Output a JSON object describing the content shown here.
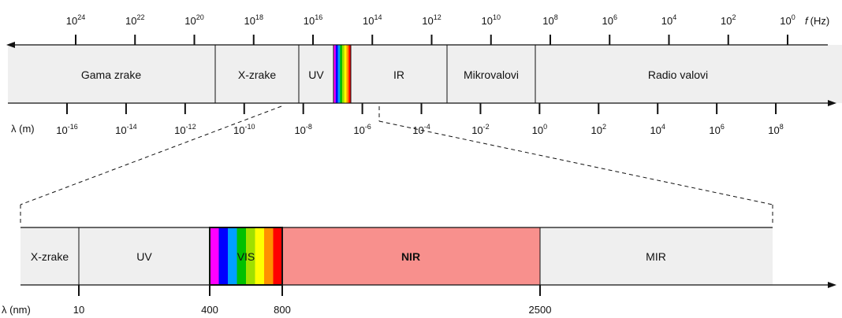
{
  "colors": {
    "band_fill": "#efefef",
    "nir_fill": "#f8908d",
    "axis": "#111111",
    "spectrum": [
      "#ff00ff",
      "#0000ff",
      "#00a0ff",
      "#00c000",
      "#a0e000",
      "#ffff00",
      "#ff9000",
      "#ff0000"
    ]
  },
  "frequency_axis": {
    "unit_symbol": "f",
    "unit": "(Hz)",
    "ticks": [
      {
        "base": "10",
        "exp": "24"
      },
      {
        "base": "10",
        "exp": "22"
      },
      {
        "base": "10",
        "exp": "20"
      },
      {
        "base": "10",
        "exp": "18"
      },
      {
        "base": "10",
        "exp": "16"
      },
      {
        "base": "10",
        "exp": "14"
      },
      {
        "base": "10",
        "exp": "12"
      },
      {
        "base": "10",
        "exp": "10"
      },
      {
        "base": "10",
        "exp": "8"
      },
      {
        "base": "10",
        "exp": "6"
      },
      {
        "base": "10",
        "exp": "4"
      },
      {
        "base": "10",
        "exp": "2"
      },
      {
        "base": "10",
        "exp": "0"
      }
    ]
  },
  "wavelength_axis": {
    "label": "λ (m)",
    "ticks": [
      {
        "base": "10",
        "exp": "-16"
      },
      {
        "base": "10",
        "exp": "-14"
      },
      {
        "base": "10",
        "exp": "-12"
      },
      {
        "base": "10",
        "exp": "-10"
      },
      {
        "base": "10",
        "exp": "-8"
      },
      {
        "base": "10",
        "exp": "-6"
      },
      {
        "base": "10",
        "exp": "-4"
      },
      {
        "base": "10",
        "exp": "-2"
      },
      {
        "base": "10",
        "exp": "0"
      },
      {
        "base": "10",
        "exp": "2"
      },
      {
        "base": "10",
        "exp": "4"
      },
      {
        "base": "10",
        "exp": "6"
      },
      {
        "base": "10",
        "exp": "8"
      }
    ]
  },
  "top_bands": [
    {
      "name": "gamma",
      "label": "Gama zrake"
    },
    {
      "name": "xray",
      "label": "X-zrake"
    },
    {
      "name": "uv",
      "label": "UV"
    },
    {
      "name": "visible",
      "label": ""
    },
    {
      "name": "ir",
      "label": "IR"
    },
    {
      "name": "microwave",
      "label": "Mikrovalovi"
    },
    {
      "name": "radio",
      "label": "Radio valovi"
    }
  ],
  "bottom_bands": [
    {
      "name": "xray",
      "label": "X-zrake"
    },
    {
      "name": "uv",
      "label": "UV"
    },
    {
      "name": "vis",
      "label": "VIS"
    },
    {
      "name": "nir",
      "label": "NIR"
    },
    {
      "name": "mir",
      "label": "MIR"
    }
  ],
  "nm_axis": {
    "label": "λ (nm)",
    "ticks": [
      "10",
      "400",
      "800",
      "2500"
    ]
  }
}
